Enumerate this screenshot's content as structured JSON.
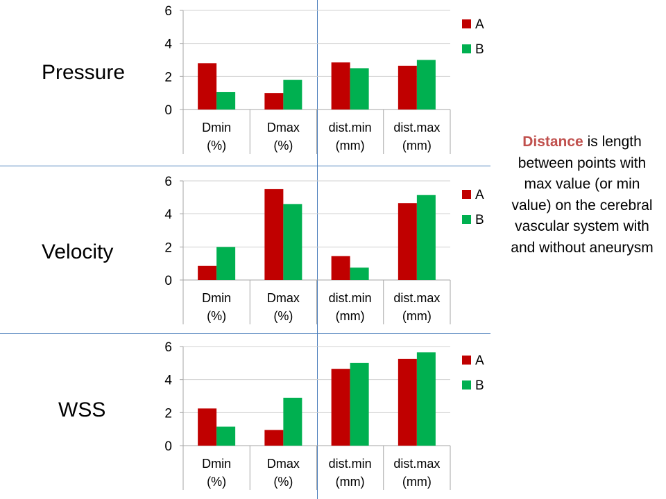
{
  "row_labels": [
    "Pressure",
    "Velocity",
    "WSS"
  ],
  "note": {
    "highlight": "Distance",
    "text": " is length between points with max value (or min value) on the cerebral vascular system with and without aneurysm"
  },
  "colors": {
    "A": "#c00000",
    "B": "#00b050",
    "divider": "#4a7ebb",
    "note_highlight": "#c0504d"
  },
  "chart_data": [
    {
      "type": "bar",
      "categories": [
        [
          "Dmin",
          "(%)"
        ],
        [
          "Dmax",
          "(%)"
        ],
        [
          "dist.min",
          "(mm)"
        ],
        [
          "dist.max",
          "(mm)"
        ]
      ],
      "series": [
        {
          "name": "A",
          "values": [
            2.8,
            1.0,
            2.85,
            2.65
          ]
        },
        {
          "name": "B",
          "values": [
            1.05,
            1.8,
            2.5,
            3.0
          ]
        }
      ],
      "ylim": [
        0,
        6
      ],
      "yticks": [
        0,
        2,
        4,
        6
      ],
      "grid": true,
      "legend": "right"
    },
    {
      "type": "bar",
      "categories": [
        [
          "Dmin",
          "(%)"
        ],
        [
          "Dmax",
          "(%)"
        ],
        [
          "dist.min",
          "(mm)"
        ],
        [
          "dist.max",
          "(mm)"
        ]
      ],
      "series": [
        {
          "name": "A",
          "values": [
            0.85,
            5.5,
            1.45,
            4.65
          ]
        },
        {
          "name": "B",
          "values": [
            2.0,
            4.6,
            0.75,
            5.15
          ]
        }
      ],
      "ylim": [
        0,
        6
      ],
      "yticks": [
        0,
        2,
        4,
        6
      ],
      "grid": true,
      "legend": "right"
    },
    {
      "type": "bar",
      "categories": [
        [
          "Dmin",
          "(%)"
        ],
        [
          "Dmax",
          "(%)"
        ],
        [
          "dist.min",
          "(mm)"
        ],
        [
          "dist.max",
          "(mm)"
        ]
      ],
      "series": [
        {
          "name": "A",
          "values": [
            2.25,
            0.95,
            4.65,
            5.25
          ]
        },
        {
          "name": "B",
          "values": [
            1.15,
            2.9,
            5.0,
            5.65
          ]
        }
      ],
      "ylim": [
        0,
        6
      ],
      "yticks": [
        0,
        2,
        4,
        6
      ],
      "grid": true,
      "legend": "right"
    }
  ]
}
